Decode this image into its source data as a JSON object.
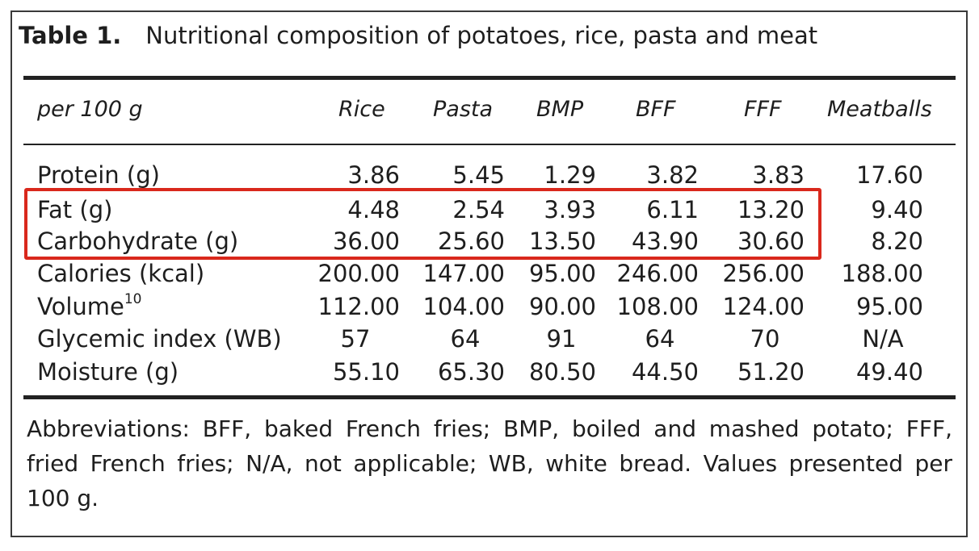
{
  "caption": {
    "label": "Table 1.",
    "text": "Nutritional composition of potatoes, rice, pasta and meat"
  },
  "columns": [
    "per 100 g",
    "Rice",
    "Pasta",
    "BMP",
    "BFF",
    "FFF",
    "Meatballs"
  ],
  "rows": [
    {
      "label": "Protein (g)",
      "sup": "",
      "values": [
        "3.86",
        "5.45",
        "1.29",
        "3.82",
        "3.83",
        "17.60"
      ]
    },
    {
      "label": "Fat (g)",
      "sup": "",
      "values": [
        "4.48",
        "2.54",
        "3.93",
        "6.11",
        "13.20",
        "9.40"
      ]
    },
    {
      "label": "Carbohydrate (g)",
      "sup": "",
      "values": [
        "36.00",
        "25.60",
        "13.50",
        "43.90",
        "30.60",
        "8.20"
      ]
    },
    {
      "label": "Calories (kcal)",
      "sup": "",
      "values": [
        "200.00",
        "147.00",
        "95.00",
        "246.00",
        "256.00",
        "188.00"
      ]
    },
    {
      "label": "Volume",
      "sup": "10",
      "values": [
        "112.00",
        "104.00",
        "90.00",
        "108.00",
        "124.00",
        "95.00"
      ]
    },
    {
      "label": "Glycemic index (WB)",
      "sup": "",
      "values": [
        "57",
        "64",
        "91",
        "64",
        "70",
        "N/A"
      ]
    },
    {
      "label": "Moisture (g)",
      "sup": "",
      "values": [
        "55.10",
        "65.30",
        "80.50",
        "44.50",
        "51.20",
        "49.40"
      ]
    }
  ],
  "footnote": "Abbreviations: BFF, baked French fries; BMP, boiled and mashed potato; FFF, fried French fries; N/A, not applicable; WB, white bread. Values presented per 100 g.",
  "highlight_color": "#d9281c"
}
